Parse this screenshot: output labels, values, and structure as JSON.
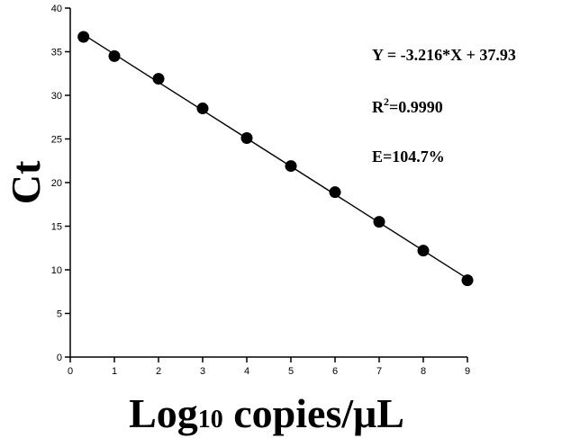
{
  "chart_data": {
    "type": "scatter",
    "title": "",
    "xlabel": "Log",
    "xlabel_sub": "10",
    "xlabel_rest": " copies/μL",
    "ylabel": "Ct",
    "xlim": [
      0,
      9
    ],
    "ylim": [
      0,
      40
    ],
    "xticks": [
      0,
      1,
      2,
      3,
      4,
      5,
      6,
      7,
      8,
      9
    ],
    "yticks": [
      0,
      5,
      10,
      15,
      20,
      25,
      30,
      35,
      40
    ],
    "grid": false,
    "legend": "none",
    "series": [
      {
        "x": [
          0.3,
          1,
          2,
          3,
          4,
          5,
          6,
          7,
          8,
          9
        ],
        "y": [
          36.7,
          34.5,
          31.9,
          28.5,
          25.1,
          21.9,
          18.9,
          15.5,
          12.2,
          8.8
        ],
        "color": "#000000"
      }
    ],
    "fit_line": {
      "slope": -3.216,
      "intercept": 37.93,
      "x_range": [
        0.3,
        9
      ]
    },
    "annotations": {
      "equation": "Y = -3.216*X + 37.93",
      "r2_prefix": "R",
      "r2_sup": "2",
      "r2_value": "=0.9990",
      "efficiency": "E=104.7%"
    }
  }
}
